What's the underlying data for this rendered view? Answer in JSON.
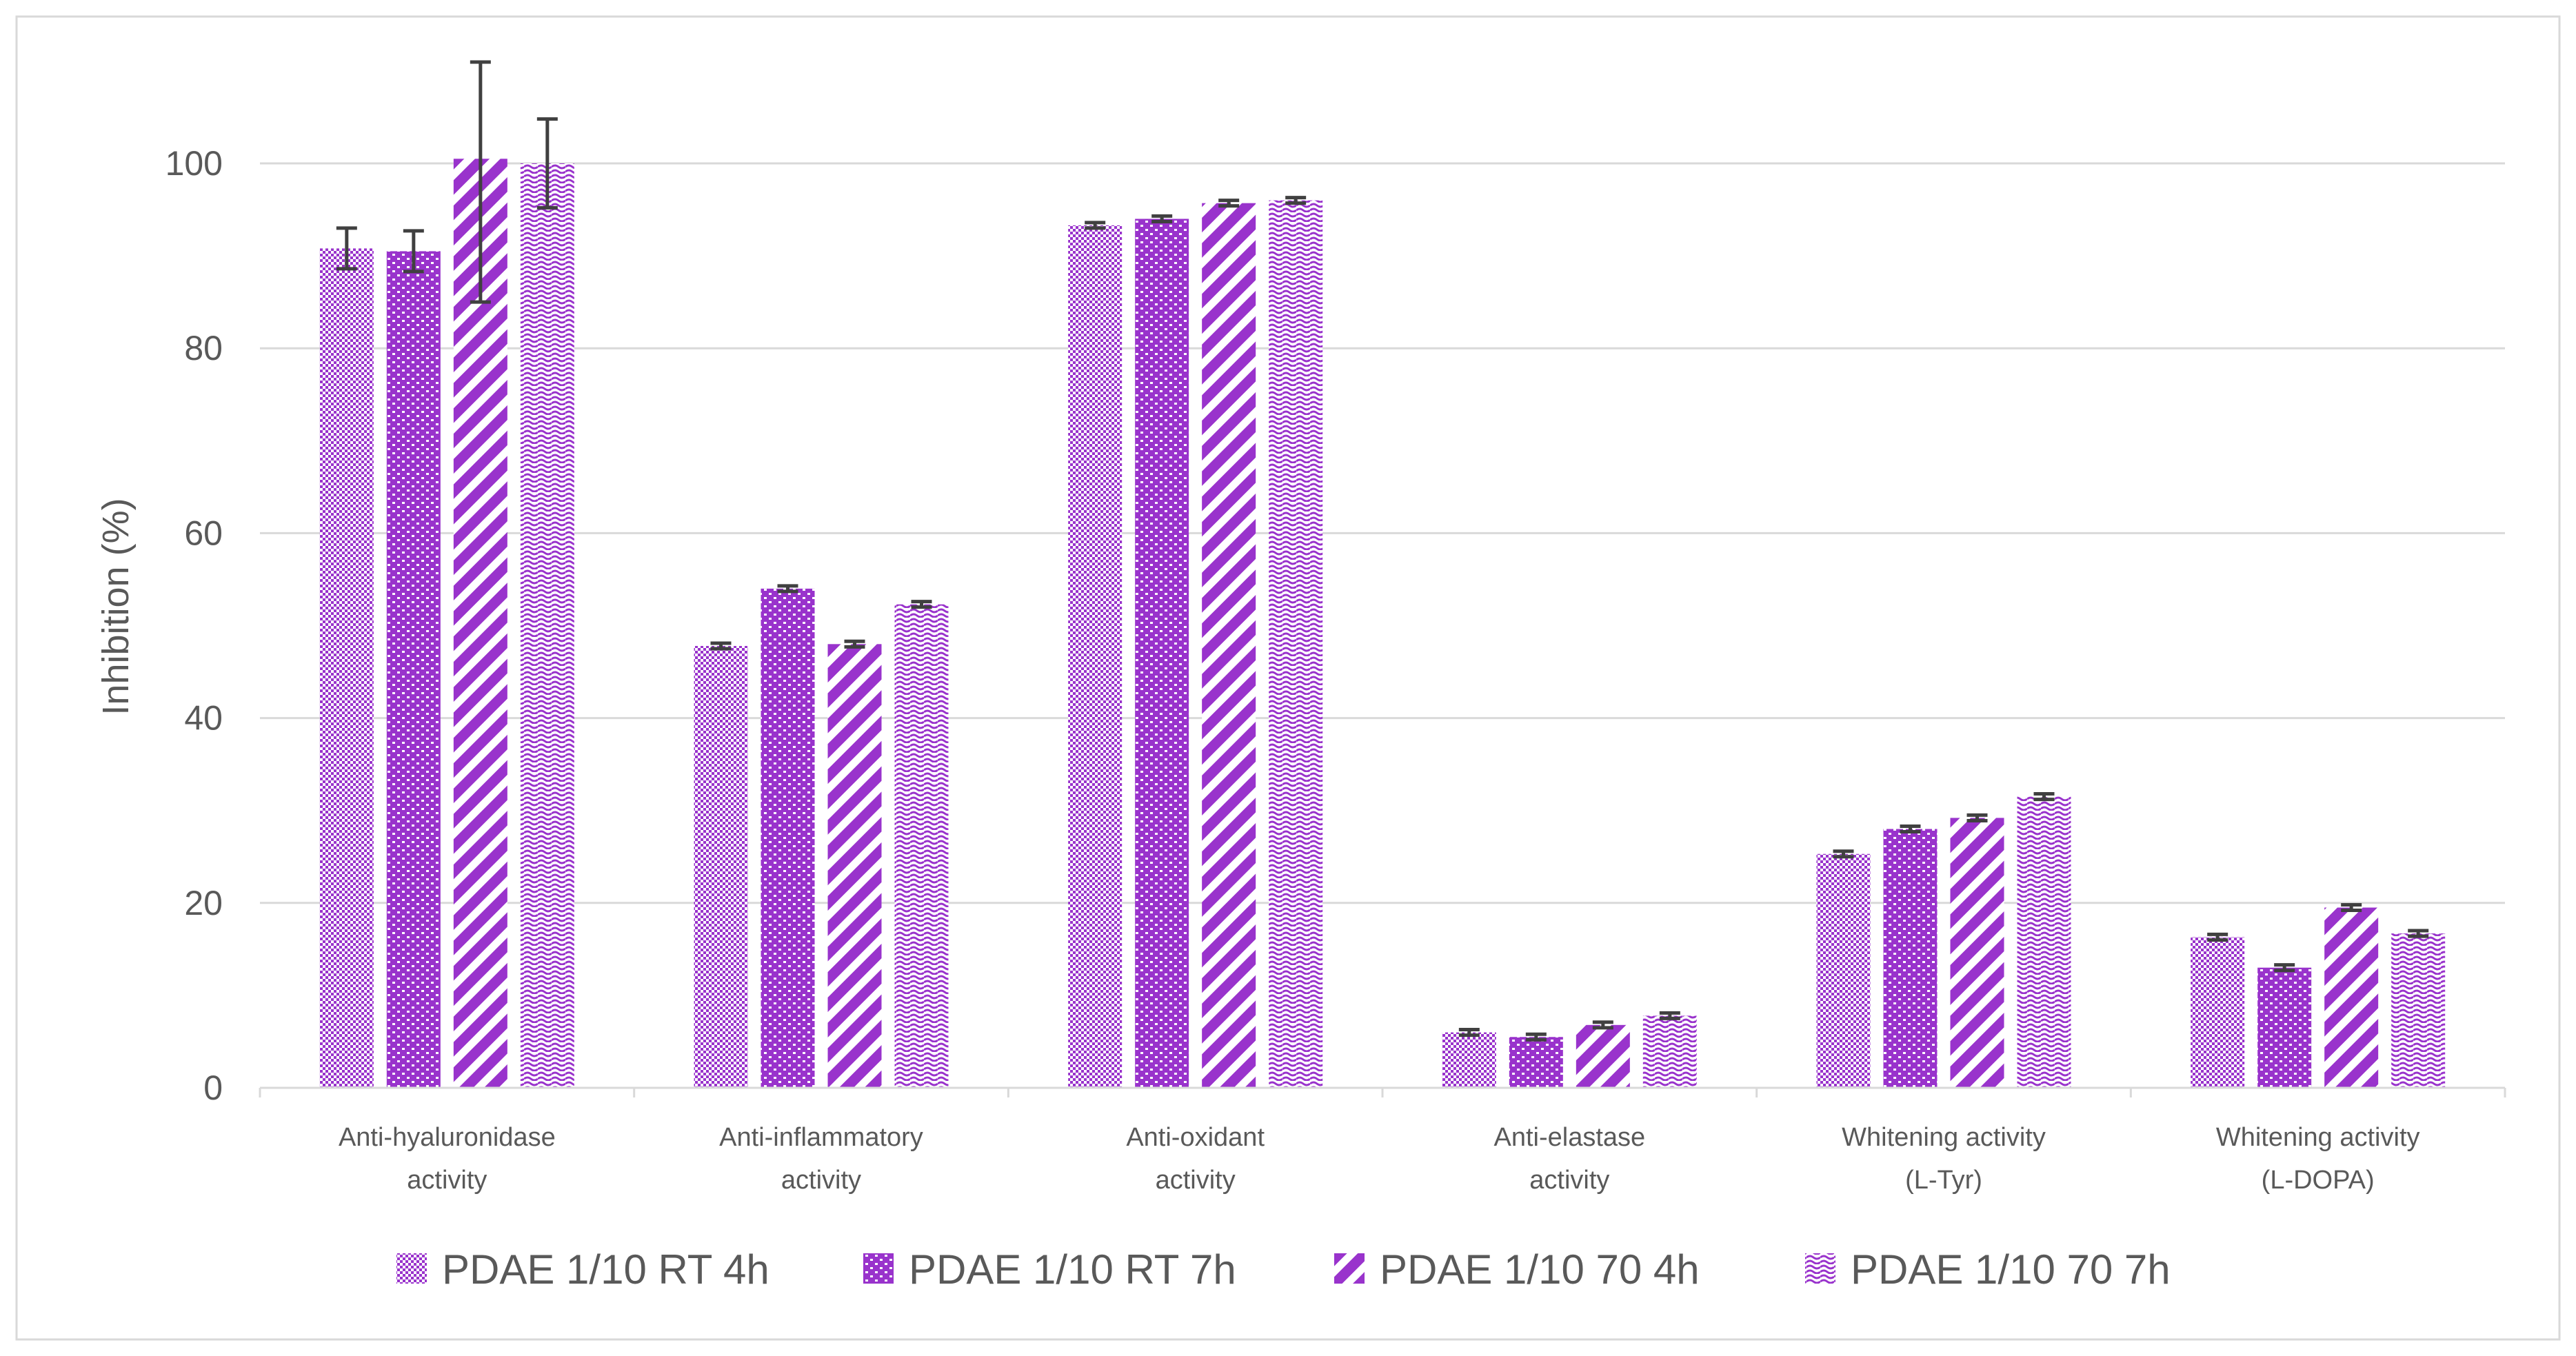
{
  "chart_data": {
    "type": "bar",
    "title": "",
    "xlabel": "",
    "ylabel": "Inhibition (%)",
    "ylim": [
      0,
      110
    ],
    "yticks": [
      0,
      20,
      40,
      60,
      80,
      100
    ],
    "grid": true,
    "legend_position": "bottom",
    "categories": [
      [
        "Anti-hyaluronidase",
        "activity"
      ],
      [
        "Anti-inflammatory",
        "activity"
      ],
      [
        "Anti-oxidant",
        "activity"
      ],
      [
        "Anti-elastase",
        "activity"
      ],
      [
        "Whitening activity",
        "(L-Tyr)"
      ],
      [
        "Whitening activity",
        "(L-DOPA)"
      ]
    ],
    "series": [
      {
        "name": "PDAE 1/10 RT 4h",
        "pattern": "checker",
        "values": [
          90.8,
          47.8,
          93.3,
          6.0,
          25.3,
          16.3
        ],
        "errors": [
          2.2,
          0.3,
          0.3,
          0.3,
          0.3,
          0.3
        ]
      },
      {
        "name": "PDAE 1/10 RT 7h",
        "pattern": "bricks",
        "values": [
          90.5,
          54.0,
          94.0,
          5.5,
          28.0,
          13.0
        ],
        "errors": [
          2.2,
          0.3,
          0.3,
          0.3,
          0.3,
          0.3
        ]
      },
      {
        "name": "PDAE 1/10 70 4h",
        "pattern": "diagonal",
        "values": [
          100.5,
          48.0,
          95.7,
          6.8,
          29.2,
          19.5
        ],
        "errors": [
          15.5,
          0.3,
          0.3,
          0.3,
          0.3,
          0.3
        ]
      },
      {
        "name": "PDAE 1/10 70 7h",
        "pattern": "wave",
        "values": [
          100.0,
          52.3,
          96.0,
          7.8,
          31.5,
          16.7
        ],
        "errors": [
          4.8,
          0.3,
          0.3,
          0.3,
          0.3,
          0.3
        ]
      }
    ],
    "colors": {
      "bar": "#9933cc",
      "gridline": "#d9d9d9",
      "axis": "#d9d9d9",
      "text": "#595959",
      "errorbar": "#404040"
    }
  }
}
